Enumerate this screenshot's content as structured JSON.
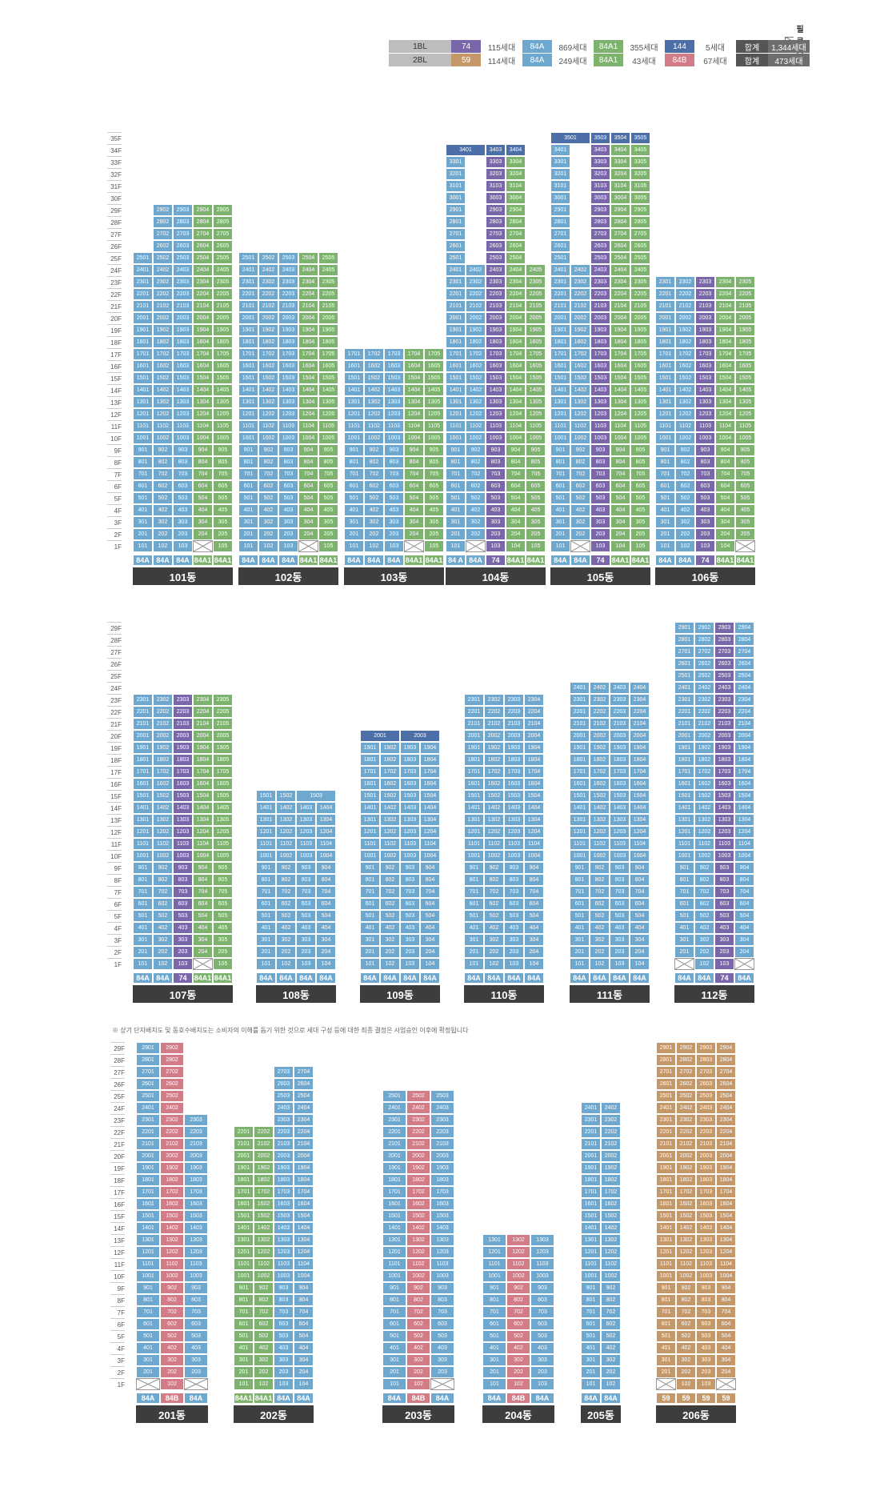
{
  "legend": {
    "piloti_label": "필로티",
    "rows": [
      {
        "bl": "1BL",
        "items": [
          {
            "type": "74",
            "color": "#7a67aa",
            "count": "115세대"
          },
          {
            "type": "84A",
            "color": "#6fa8cf",
            "count": "869세대"
          },
          {
            "type": "84A1",
            "color": "#7db36e",
            "count": "355세대"
          },
          {
            "type": "144",
            "color": "#4d6fa7",
            "count": "5세대"
          }
        ],
        "total_label": "합계",
        "total_value": "1,344세대"
      },
      {
        "bl": "2BL",
        "items": [
          {
            "type": "59",
            "color": "#c5986a",
            "count": "114세대"
          },
          {
            "type": "84A",
            "color": "#6fa8cf",
            "count": "249세대"
          },
          {
            "type": "84A1",
            "color": "#7db36e",
            "count": "43세대"
          },
          {
            "type": "84B",
            "color": "#d27c87",
            "count": "67세대"
          }
        ],
        "total_label": "합계",
        "total_value": "473세대"
      }
    ]
  },
  "colors": {
    "74": "#7a67aa",
    "84A": "#6fa8cf",
    "84A1": "#7db36e",
    "144": "#4d6fa7",
    "59": "#c5986a",
    "84B": "#d27c87"
  },
  "note": "※ 상기 단지배치도 및 동호수배치도는 소비자의 이해를 돕기 위한 것으로 세대 구성 등에 대한 최종 결정은 사업승인 이후에 확정됩니다",
  "sections": [
    {
      "key": "s1",
      "max_floor": 35,
      "buildings": [
        {
          "name": "101동",
          "types": [
            "84A",
            "84A",
            "84A",
            "84A1",
            "84A1"
          ],
          "floors": 29,
          "special": {
            "27": [
              1,
              2,
              3,
              4,
              5
            ],
            "28": [
              1,
              2,
              3,
              4,
              5
            ],
            "29": [
              2,
              3,
              4,
              5
            ],
            "26": [
              2,
              3,
              4,
              5
            ]
          },
          "high_floor_lines": {
            "26": [
              2,
              3,
              4,
              5
            ],
            "27": [
              2,
              3,
              4,
              5
            ],
            "28": [
              2,
              3,
              4,
              5
            ],
            "29": [
              2,
              3,
              4,
              5
            ]
          },
          "max_by_line": [
            25,
            29,
            29,
            29,
            29
          ],
          "piloti": [
            4
          ],
          "first_floor_lines": [
            1,
            2,
            3,
            5
          ]
        },
        {
          "name": "102동",
          "types": [
            "84A",
            "84A",
            "84A",
            "84A1",
            "84A1"
          ],
          "max_by_line": [
            25,
            25,
            25,
            25,
            25
          ],
          "piloti": [
            4
          ]
        },
        {
          "name": "103동",
          "types": [
            "84A",
            "84A",
            "84A",
            "84A1",
            "84A1"
          ],
          "max_by_line": [
            17,
            17,
            17,
            17,
            17
          ],
          "piloti": [
            4
          ]
        },
        {
          "name": "104동",
          "types": [
            "84 A",
            "84A",
            "74",
            "84A1",
            "84A1"
          ],
          "max_by_line": [
            34,
            24,
            34,
            34,
            24
          ],
          "piloti": [
            2
          ],
          "wide_top": {
            "34": [
              [
                1,
                2
              ],
              [
                3
              ],
              [
                4
              ]
            ]
          },
          "color_over": {
            "4": "#7a67aa"
          }
        },
        {
          "name": "105동",
          "types": [
            "84A",
            "84A",
            "74",
            "84A1",
            "84A1"
          ],
          "max_by_line": [
            35,
            24,
            35,
            35,
            35
          ],
          "piloti": [
            2
          ],
          "wide_top": {
            "35": [
              [
                1,
                2
              ],
              [
                3
              ],
              [
                4
              ],
              [
                5
              ]
            ]
          }
        },
        {
          "name": "106동",
          "types": [
            "84A",
            "84A",
            "74",
            "84A1",
            "84A1"
          ],
          "max_by_line": [
            23,
            23,
            23,
            23,
            23
          ],
          "piloti": [
            5
          ]
        }
      ]
    },
    {
      "key": "s2",
      "max_floor": 29,
      "buildings": [
        {
          "name": "107동",
          "types": [
            "84A",
            "84A",
            "74",
            "84A1",
            "84A1"
          ],
          "max_by_line": [
            23,
            23,
            23,
            23,
            23
          ],
          "piloti": [
            4
          ]
        },
        {
          "name": "108동",
          "types": [
            "84A",
            "84A",
            "84A",
            "84A"
          ],
          "max_by_line": [
            15,
            15,
            15,
            14
          ],
          "piloti": [],
          "wide_top": {
            "15": [
              [
                1
              ],
              [
                2
              ],
              [
                3,
                4
              ]
            ]
          }
        },
        {
          "name": "109동",
          "types": [
            "84A",
            "84A",
            "84A",
            "84A"
          ],
          "max_by_line": [
            20,
            19,
            20,
            19
          ],
          "piloti": [],
          "wide_top": {
            "20": [
              [
                1,
                2
              ],
              [
                3,
                4
              ]
            ]
          }
        },
        {
          "name": "110동",
          "types": [
            "84A",
            "84A",
            "84A",
            "84A"
          ],
          "max_by_line": [
            23,
            23,
            23,
            23
          ],
          "piloti": []
        },
        {
          "name": "111동",
          "types": [
            "84A",
            "84A",
            "84A",
            "84A"
          ],
          "max_by_line": [
            24,
            24,
            24,
            24
          ],
          "piloti": []
        },
        {
          "name": "112동",
          "types": [
            "84A",
            "84A",
            "74",
            "84A"
          ],
          "max_by_line": [
            29,
            29,
            29,
            29
          ],
          "piloti": [
            1,
            4
          ]
        }
      ]
    },
    {
      "key": "s3",
      "max_floor": 29,
      "buildings": [
        {
          "name": "201동",
          "types": [
            "84A",
            "84B",
            "84A"
          ],
          "max_by_line": [
            29,
            29,
            23
          ],
          "piloti": [
            1,
            3
          ]
        },
        {
          "name": "202동",
          "types": [
            "84A1",
            "84A1",
            "84A",
            "84A"
          ],
          "max_by_line": [
            22,
            22,
            27,
            27
          ],
          "piloti": []
        },
        {
          "name": "203동",
          "types": [
            "84A",
            "84B",
            "84A"
          ],
          "max_by_line": [
            25,
            25,
            25
          ],
          "piloti": [
            3
          ]
        },
        {
          "name": "204동",
          "types": [
            "84A",
            "84B",
            "84A"
          ],
          "max_by_line": [
            13,
            13,
            13
          ],
          "piloti": []
        },
        {
          "name": "205동",
          "types": [
            "84A",
            "84A"
          ],
          "max_by_line": [
            24,
            24
          ],
          "piloti": []
        },
        {
          "name": "206동",
          "types": [
            "59",
            "59",
            "59",
            "59"
          ],
          "max_by_line": [
            29,
            29,
            29,
            29
          ],
          "piloti": [
            1,
            4
          ]
        }
      ]
    }
  ]
}
